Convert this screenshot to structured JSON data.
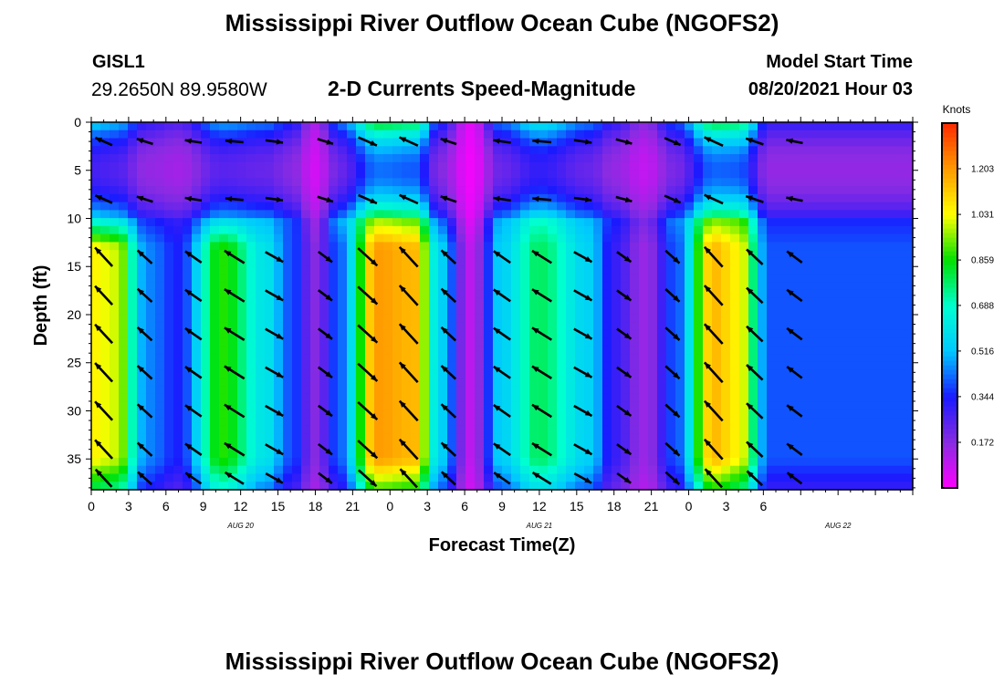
{
  "header": {
    "title": "Mississippi River Outflow Ocean Cube (NGOFS2)",
    "station": "GISL1",
    "coordinates": "29.2650N  89.9580W",
    "model_start_label": "Model Start Time",
    "model_start_value": "08/20/2021 Hour 03"
  },
  "footer": {
    "title": "Mississippi River Outflow Ocean Cube (NGOFS2)"
  },
  "chart_data": {
    "type": "heatmap",
    "title": "2-D Currents Speed-Magnitude",
    "xlabel": "Forecast Time(Z)",
    "ylabel": "Depth (ft)",
    "x_tick_labels": [
      "0",
      "3",
      "6",
      "9",
      "12",
      "15",
      "18",
      "21",
      "0",
      "3",
      "6",
      "9",
      "12",
      "15",
      "18",
      "21",
      "0",
      "3",
      "6"
    ],
    "date_labels": [
      {
        "text": "AUG  20",
        "hour": 12
      },
      {
        "text": "AUG  21",
        "hour": 36
      },
      {
        "text": "AUG  22",
        "hour": 60
      }
    ],
    "xlim": [
      0,
      66
    ],
    "x_units": "forecast hours from 08/20/2021 00Z",
    "y_ticks": [
      0,
      5,
      10,
      15,
      20,
      25,
      30,
      35
    ],
    "ylim": [
      0,
      38.2
    ],
    "y_inverted": true,
    "colorbar": {
      "label": "Knots",
      "ticks": [
        "1.203",
        "1.031",
        "0.859",
        "0.688",
        "0.516",
        "0.344",
        "0.172"
      ],
      "tick_values": [
        1.203,
        1.031,
        0.859,
        0.688,
        0.516,
        0.344,
        0.172
      ],
      "range": [
        0,
        1.375
      ],
      "colors": [
        "#ff00ff",
        "#8a2be2",
        "#1a1aff",
        "#00c8ff",
        "#00ffd0",
        "#00e000",
        "#ffff00",
        "#ff9a00",
        "#ff2a00"
      ]
    },
    "speed_model": {
      "hours": [
        0,
        2,
        4.5,
        7,
        10.5,
        14,
        16,
        18,
        20,
        23,
        26,
        28,
        30.5,
        33,
        36,
        40,
        42,
        44.5,
        47,
        50,
        52,
        54.5
      ],
      "deep_speed_knots": [
        1.05,
        1.0,
        0.45,
        0.35,
        0.88,
        0.6,
        0.4,
        0.18,
        0.42,
        1.2,
        1.15,
        0.55,
        0.1,
        0.55,
        0.78,
        0.55,
        0.3,
        0.15,
        0.4,
        1.15,
        1.05,
        0.4
      ],
      "surface_speed_knots": [
        0.62,
        0.58,
        0.35,
        0.3,
        0.55,
        0.5,
        0.4,
        0.15,
        0.5,
        0.95,
        0.9,
        0.4,
        0.05,
        0.5,
        0.68,
        0.5,
        0.35,
        0.2,
        0.45,
        0.92,
        0.9,
        0.35
      ],
      "upper_layer_depth_ft": [
        0,
        10
      ],
      "upper_layer_speed_factor": 0.45
    },
    "vectors": {
      "columns_hours": [
        1,
        4.3,
        8.2,
        11.5,
        14.7,
        18.8,
        22.2,
        25.5,
        28.7,
        33,
        36.2,
        39.5,
        42.8,
        46.7,
        50,
        53.3,
        56.5
      ],
      "rows_depth_ft": [
        2,
        8,
        14,
        18,
        22,
        26,
        30,
        34,
        37
      ],
      "direction_cycle_hours": 24.8,
      "phase_hours": -0.8
    }
  }
}
